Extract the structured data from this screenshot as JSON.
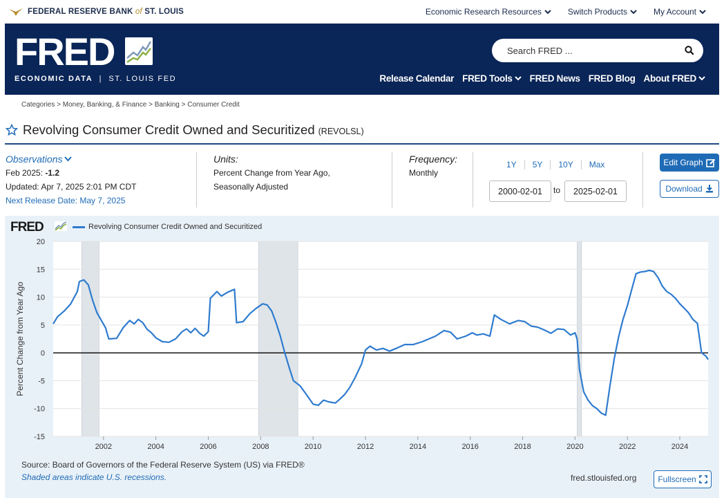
{
  "topbar": {
    "bank_name_1": "FEDERAL RESERVE BANK",
    "bank_name_of": "of",
    "bank_name_2": "ST. LOUIS",
    "nav": [
      "Economic Research Resources",
      "Switch Products",
      "My Account"
    ]
  },
  "header": {
    "logo": "FRED",
    "subtitle_bold": "ECONOMIC DATA",
    "subtitle_sep": "|",
    "subtitle_rest": "ST. LOUIS FED",
    "search_placeholder": "Search FRED ...",
    "nav": [
      "Release Calendar",
      "FRED Tools",
      "FRED News",
      "FRED Blog",
      "About FRED"
    ]
  },
  "breadcrumb": "Categories > Money, Banking, & Finance > Banking > Consumer Credit",
  "title": "Revolving Consumer Credit Owned and Securitized",
  "series_id": "(REVOLSL)",
  "observations": {
    "label": "Observations",
    "latest_period": "Feb 2025:",
    "latest_value": "-1.2",
    "updated": "Updated: Apr 7, 2025 2:01 PM CDT",
    "next_release": "Next Release Date: May 7, 2025"
  },
  "units": {
    "label": "Units:",
    "line1": "Percent Change from Year Ago,",
    "line2": "Seasonally Adjusted"
  },
  "frequency": {
    "label": "Frequency:",
    "value": "Monthly"
  },
  "range_buttons": [
    "1Y",
    "5Y",
    "10Y",
    "Max"
  ],
  "date_from": "2000-02-01",
  "date_to": "2025-02-01",
  "to_label": "to",
  "buttons": {
    "edit": "Edit Graph",
    "download": "Download",
    "fullscreen": "Fullscreen"
  },
  "chart_meta": {
    "logo": "FRED",
    "source": "Source: Board of Governors of the Federal Reserve System (US) via FRED®",
    "recession_note": "Shaded areas indicate U.S. recessions.",
    "url": "fred.stlouisfed.org"
  },
  "colors": {
    "navy": "#0a2557",
    "link": "#1f6bb6",
    "series": "#2e7bcf",
    "recession": "#dfe4e8",
    "panel": "#e9f1f8"
  },
  "chart_data": {
    "type": "line",
    "title": "Revolving Consumer Credit Owned and Securitized",
    "xlabel": "",
    "ylabel": "Percent Change from Year Ago",
    "xlim": [
      2000.08,
      2025.08
    ],
    "ylim": [
      -15,
      20
    ],
    "y_ticks": [
      "20",
      "15",
      "10",
      "5",
      "0",
      "-5",
      "-10",
      "-15"
    ],
    "y_tick_values": [
      20,
      15,
      10,
      5,
      0,
      -5,
      -10,
      -15
    ],
    "x_ticks": [
      "2002",
      "2004",
      "2006",
      "2008",
      "2010",
      "2012",
      "2014",
      "2016",
      "2018",
      "2020",
      "2022",
      "2024"
    ],
    "x_tick_values": [
      2002,
      2004,
      2006,
      2008,
      2010,
      2012,
      2014,
      2016,
      2018,
      2020,
      2022,
      2024
    ],
    "recessions": [
      [
        2001.17,
        2001.83
      ],
      [
        2007.92,
        2009.42
      ],
      [
        2020.08,
        2020.25
      ]
    ],
    "legend": [
      "Revolving Consumer Credit Owned and Securitized"
    ],
    "series": [
      {
        "name": "Revolving Consumer Credit Owned and Securitized",
        "points": [
          [
            2000.08,
            5.2
          ],
          [
            2000.25,
            6.5
          ],
          [
            2000.5,
            7.5
          ],
          [
            2000.75,
            8.8
          ],
          [
            2001.0,
            11.0
          ],
          [
            2001.08,
            12.8
          ],
          [
            2001.25,
            13.1
          ],
          [
            2001.42,
            12.2
          ],
          [
            2001.58,
            9.5
          ],
          [
            2001.75,
            7.2
          ],
          [
            2001.92,
            5.8
          ],
          [
            2002.08,
            4.5
          ],
          [
            2002.2,
            2.5
          ],
          [
            2002.5,
            2.6
          ],
          [
            2002.75,
            4.5
          ],
          [
            2003.0,
            5.8
          ],
          [
            2003.17,
            5.2
          ],
          [
            2003.33,
            6.0
          ],
          [
            2003.5,
            5.4
          ],
          [
            2003.67,
            4.2
          ],
          [
            2003.83,
            3.6
          ],
          [
            2004.0,
            2.7
          ],
          [
            2004.25,
            2.0
          ],
          [
            2004.5,
            1.9
          ],
          [
            2004.75,
            2.5
          ],
          [
            2005.0,
            3.8
          ],
          [
            2005.17,
            4.3
          ],
          [
            2005.33,
            3.6
          ],
          [
            2005.5,
            4.4
          ],
          [
            2005.67,
            3.5
          ],
          [
            2005.83,
            3.0
          ],
          [
            2006.0,
            3.8
          ],
          [
            2006.08,
            9.8
          ],
          [
            2006.33,
            11.0
          ],
          [
            2006.5,
            10.2
          ],
          [
            2006.75,
            10.9
          ],
          [
            2007.0,
            11.4
          ],
          [
            2007.08,
            5.4
          ],
          [
            2007.33,
            5.6
          ],
          [
            2007.58,
            7.0
          ],
          [
            2007.83,
            8.0
          ],
          [
            2008.08,
            8.8
          ],
          [
            2008.25,
            8.6
          ],
          [
            2008.42,
            7.5
          ],
          [
            2008.58,
            5.5
          ],
          [
            2008.75,
            3.0
          ],
          [
            2008.92,
            0.0
          ],
          [
            2009.08,
            -2.5
          ],
          [
            2009.25,
            -5.0
          ],
          [
            2009.5,
            -5.9
          ],
          [
            2009.75,
            -7.5
          ],
          [
            2010.0,
            -9.2
          ],
          [
            2010.2,
            -9.4
          ],
          [
            2010.4,
            -8.5
          ],
          [
            2010.6,
            -8.8
          ],
          [
            2010.85,
            -9.0
          ],
          [
            2011.0,
            -8.4
          ],
          [
            2011.2,
            -7.5
          ],
          [
            2011.4,
            -6.2
          ],
          [
            2011.6,
            -4.5
          ],
          [
            2011.85,
            -2.0
          ],
          [
            2012.0,
            0.5
          ],
          [
            2012.17,
            1.2
          ],
          [
            2012.42,
            0.5
          ],
          [
            2012.67,
            0.8
          ],
          [
            2012.92,
            0.3
          ],
          [
            2013.17,
            0.8
          ],
          [
            2013.5,
            1.5
          ],
          [
            2013.83,
            1.5
          ],
          [
            2014.17,
            2.0
          ],
          [
            2014.42,
            2.5
          ],
          [
            2014.67,
            3.0
          ],
          [
            2015.0,
            4.0
          ],
          [
            2015.25,
            3.7
          ],
          [
            2015.5,
            2.5
          ],
          [
            2015.83,
            3.0
          ],
          [
            2016.08,
            3.6
          ],
          [
            2016.25,
            3.2
          ],
          [
            2016.5,
            3.4
          ],
          [
            2016.75,
            3.0
          ],
          [
            2016.92,
            6.8
          ],
          [
            2017.17,
            6.0
          ],
          [
            2017.5,
            5.2
          ],
          [
            2017.83,
            5.8
          ],
          [
            2018.08,
            5.6
          ],
          [
            2018.33,
            4.8
          ],
          [
            2018.58,
            4.6
          ],
          [
            2018.83,
            4.1
          ],
          [
            2019.08,
            3.5
          ],
          [
            2019.33,
            4.3
          ],
          [
            2019.58,
            4.2
          ],
          [
            2019.83,
            3.2
          ],
          [
            2020.0,
            3.6
          ],
          [
            2020.08,
            2.5
          ],
          [
            2020.17,
            -3.0
          ],
          [
            2020.33,
            -7.0
          ],
          [
            2020.5,
            -8.5
          ],
          [
            2020.67,
            -9.5
          ],
          [
            2020.83,
            -10.0
          ],
          [
            2021.0,
            -10.8
          ],
          [
            2021.17,
            -11.2
          ],
          [
            2021.33,
            -6.0
          ],
          [
            2021.5,
            -1.0
          ],
          [
            2021.67,
            3.0
          ],
          [
            2021.83,
            6.0
          ],
          [
            2022.0,
            8.5
          ],
          [
            2022.17,
            11.5
          ],
          [
            2022.33,
            14.2
          ],
          [
            2022.5,
            14.5
          ],
          [
            2022.67,
            14.6
          ],
          [
            2022.83,
            14.8
          ],
          [
            2023.0,
            14.6
          ],
          [
            2023.17,
            13.5
          ],
          [
            2023.33,
            12.0
          ],
          [
            2023.5,
            11.0
          ],
          [
            2023.67,
            10.5
          ],
          [
            2023.83,
            9.8
          ],
          [
            2024.0,
            8.8
          ],
          [
            2024.17,
            8.0
          ],
          [
            2024.33,
            7.2
          ],
          [
            2024.5,
            6.0
          ],
          [
            2024.67,
            5.3
          ],
          [
            2024.83,
            0.0
          ],
          [
            2025.0,
            -0.6
          ],
          [
            2025.08,
            -1.2
          ]
        ]
      }
    ]
  }
}
